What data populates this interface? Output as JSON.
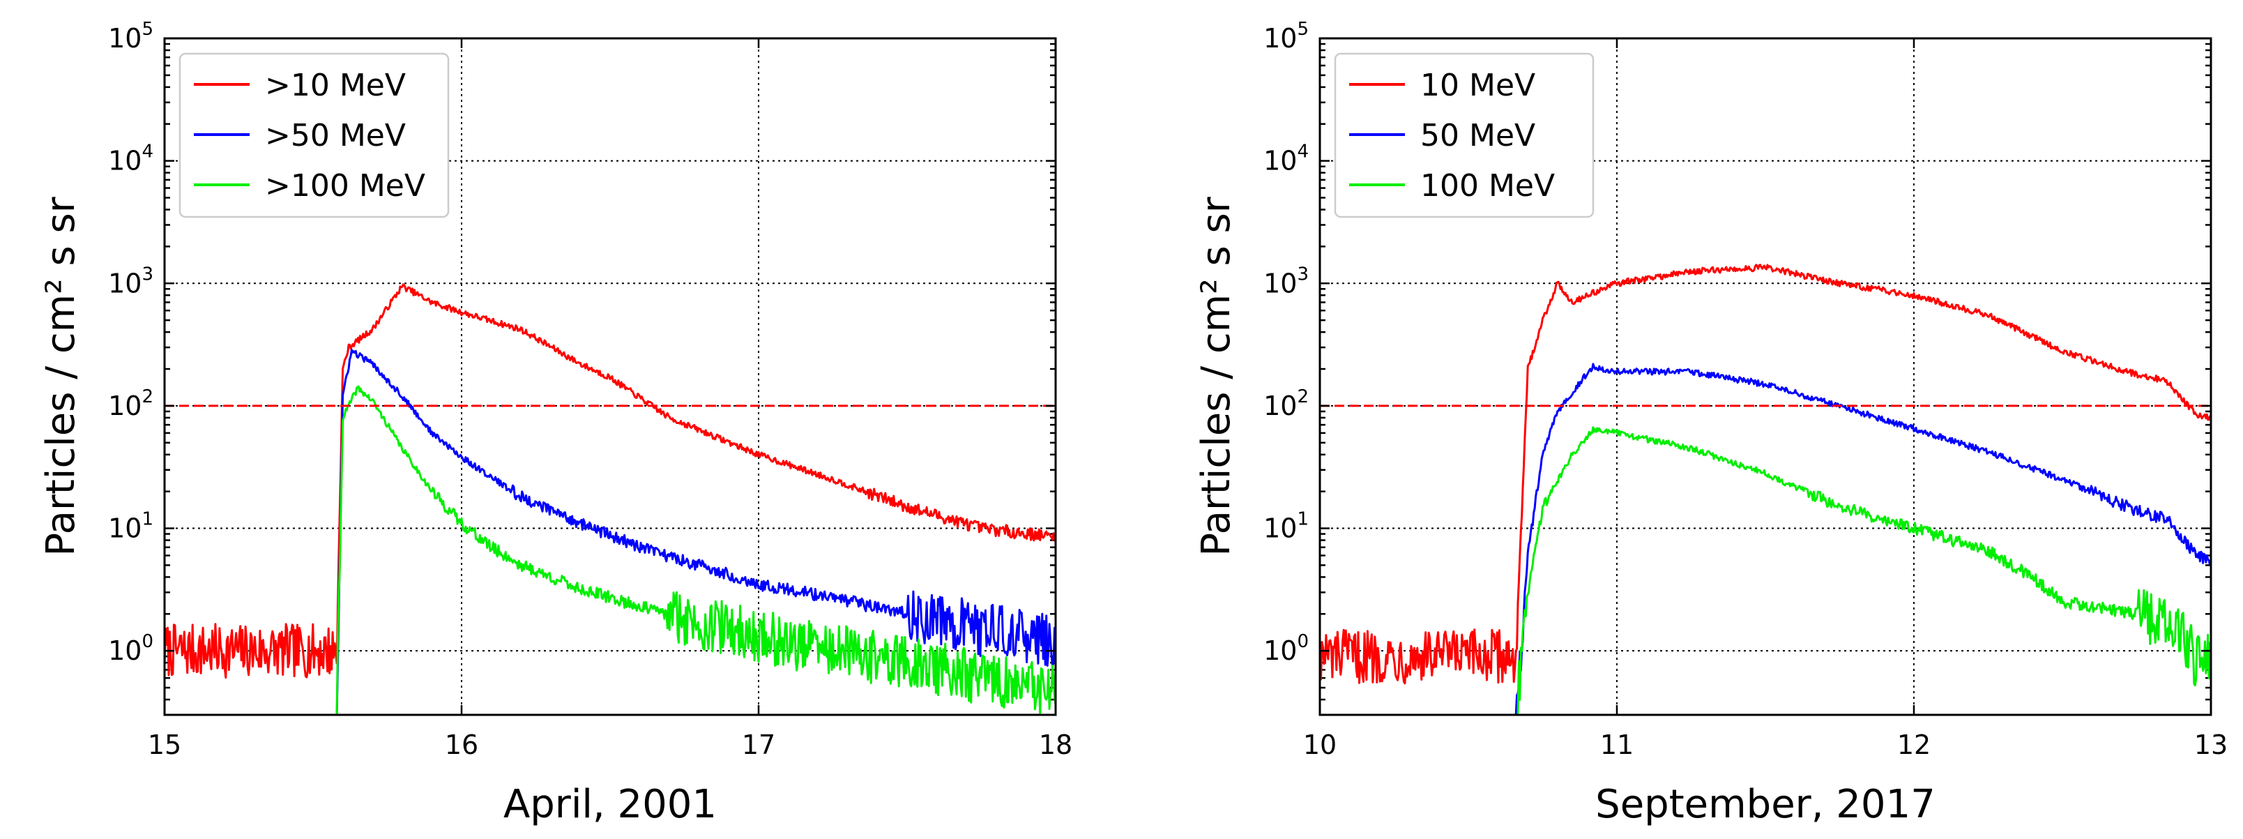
{
  "chart_data": [
    {
      "type": "line",
      "xlabel": "April, 2001",
      "ylabel": "Particles / cm² s sr",
      "xlim": [
        15,
        18
      ],
      "ylim": [
        0.3,
        100000
      ],
      "yscale": "log",
      "grid": true,
      "legend_position": "top-left",
      "x_ticks": [
        15,
        16,
        17,
        18
      ],
      "x_tick_labels": [
        "15",
        "16",
        "17",
        "18"
      ],
      "y_ticks": [
        1,
        10,
        100,
        1000,
        10000,
        100000
      ],
      "y_tick_labels": [
        {
          "base": "10",
          "exp": "0"
        },
        {
          "base": "10",
          "exp": "1"
        },
        {
          "base": "10",
          "exp": "2"
        },
        {
          "base": "10",
          "exp": "3"
        },
        {
          "base": "10",
          "exp": "4"
        },
        {
          "base": "10",
          "exp": "5"
        }
      ],
      "threshold": {
        "value": 100,
        "color": "#ff0000"
      },
      "series": [
        {
          "name": ">10 MeV",
          "color": "#ff0000",
          "points": [
            [
              15.0,
              1.0
            ],
            [
              15.58,
              1.0
            ],
            [
              15.6,
              200
            ],
            [
              15.62,
              300
            ],
            [
              15.7,
              420
            ],
            [
              15.8,
              950
            ],
            [
              15.9,
              700
            ],
            [
              16.0,
              580
            ],
            [
              16.2,
              420
            ],
            [
              16.4,
              220
            ],
            [
              16.5,
              170
            ],
            [
              16.7,
              80
            ],
            [
              17.0,
              40
            ],
            [
              17.25,
              25
            ],
            [
              17.5,
              15
            ],
            [
              17.75,
              10
            ],
            [
              18.0,
              8.5
            ]
          ]
        },
        {
          "name": ">50 MeV",
          "color": "#0000ff",
          "points": [
            [
              15.58,
              0.3
            ],
            [
              15.6,
              120
            ],
            [
              15.63,
              280
            ],
            [
              15.7,
              220
            ],
            [
              15.8,
              120
            ],
            [
              15.9,
              60
            ],
            [
              16.0,
              38
            ],
            [
              16.2,
              18
            ],
            [
              16.4,
              11
            ],
            [
              16.6,
              7
            ],
            [
              16.8,
              5
            ],
            [
              17.0,
              3.5
            ],
            [
              17.25,
              2.7
            ],
            [
              17.5,
              2.0
            ],
            [
              17.75,
              1.5
            ],
            [
              18.0,
              1.2
            ]
          ]
        },
        {
          "name": ">100 MeV",
          "color": "#00ee00",
          "points": [
            [
              15.58,
              0.3
            ],
            [
              15.6,
              80
            ],
            [
              15.65,
              140
            ],
            [
              15.7,
              110
            ],
            [
              15.8,
              45
            ],
            [
              15.9,
              20
            ],
            [
              16.0,
              11
            ],
            [
              16.1,
              7
            ],
            [
              16.2,
              5
            ],
            [
              16.4,
              3.2
            ],
            [
              16.6,
              2.3
            ],
            [
              16.8,
              1.7
            ],
            [
              17.0,
              1.3
            ],
            [
              17.25,
              1.0
            ],
            [
              17.5,
              0.8
            ],
            [
              17.75,
              0.6
            ],
            [
              18.0,
              0.45
            ]
          ]
        }
      ]
    },
    {
      "type": "line",
      "xlabel": "September, 2017",
      "ylabel": "Particles / cm² s sr",
      "xlim": [
        10,
        13
      ],
      "ylim": [
        0.3,
        100000
      ],
      "yscale": "log",
      "grid": true,
      "legend_position": "top-left",
      "x_ticks": [
        10,
        11,
        12,
        13
      ],
      "x_tick_labels": [
        "10",
        "11",
        "12",
        "13"
      ],
      "y_ticks": [
        1,
        10,
        100,
        1000,
        10000,
        100000
      ],
      "y_tick_labels": [
        {
          "base": "10",
          "exp": "0"
        },
        {
          "base": "10",
          "exp": "1"
        },
        {
          "base": "10",
          "exp": "2"
        },
        {
          "base": "10",
          "exp": "3"
        },
        {
          "base": "10",
          "exp": "4"
        },
        {
          "base": "10",
          "exp": "5"
        }
      ],
      "threshold": {
        "value": 100,
        "color": "#ff0000"
      },
      "series": [
        {
          "name": "10 MeV",
          "color": "#ff0000",
          "points": [
            [
              10.0,
              0.9
            ],
            [
              10.66,
              0.9
            ],
            [
              10.7,
              200
            ],
            [
              10.75,
              500
            ],
            [
              10.8,
              1000
            ],
            [
              10.85,
              700
            ],
            [
              10.9,
              800
            ],
            [
              11.0,
              1000
            ],
            [
              11.25,
              1250
            ],
            [
              11.5,
              1350
            ],
            [
              11.75,
              1000
            ],
            [
              12.0,
              800
            ],
            [
              12.25,
              550
            ],
            [
              12.5,
              280
            ],
            [
              12.75,
              180
            ],
            [
              12.85,
              160
            ],
            [
              12.95,
              85
            ],
            [
              13.0,
              80
            ]
          ]
        },
        {
          "name": "50 MeV",
          "color": "#0000ff",
          "points": [
            [
              10.66,
              0.3
            ],
            [
              10.7,
              6
            ],
            [
              10.75,
              40
            ],
            [
              10.8,
              90
            ],
            [
              10.85,
              130
            ],
            [
              10.92,
              210
            ],
            [
              11.0,
              190
            ],
            [
              11.25,
              190
            ],
            [
              11.5,
              150
            ],
            [
              11.75,
              100
            ],
            [
              12.0,
              65
            ],
            [
              12.25,
              42
            ],
            [
              12.5,
              25
            ],
            [
              12.75,
              14
            ],
            [
              12.85,
              12
            ],
            [
              12.95,
              6
            ],
            [
              13.0,
              5.5
            ]
          ]
        },
        {
          "name": "100 MeV",
          "color": "#00ee00",
          "points": [
            [
              10.66,
              0.3
            ],
            [
              10.7,
              3
            ],
            [
              10.75,
              15
            ],
            [
              10.85,
              40
            ],
            [
              10.92,
              65
            ],
            [
              11.0,
              60
            ],
            [
              11.25,
              45
            ],
            [
              11.5,
              28
            ],
            [
              11.75,
              15
            ],
            [
              12.0,
              10
            ],
            [
              12.25,
              6.5
            ],
            [
              12.4,
              4
            ],
            [
              12.5,
              2.5
            ],
            [
              12.75,
              2
            ],
            [
              12.9,
              1.5
            ],
            [
              12.95,
              0.8
            ],
            [
              13.0,
              0.9
            ]
          ]
        }
      ]
    }
  ]
}
